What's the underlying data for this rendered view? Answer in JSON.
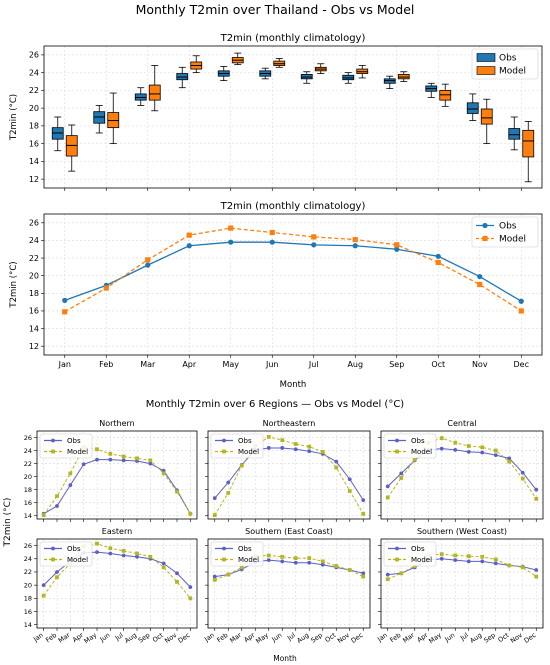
{
  "figure": {
    "suptitle": "Monthly T2min over Thailand - Obs vs Model",
    "regions_title": "Monthly T2min over 6 Regions — Obs vs Model (°C)",
    "regions_ylabel": "T2min (°C)",
    "regions_xlabel": "Month"
  },
  "colors": {
    "obs_box": "#1f77b4",
    "model_box": "#ff7f0e",
    "obs_line": "#1f77b4",
    "model_line": "#ff7f0e",
    "region_obs": "#5b5fc7",
    "region_model": "#b5b523",
    "grid": "#d9d9d9"
  },
  "chart_data": [
    {
      "type": "box",
      "title": "T2min (monthly climatology)",
      "xlabel": "",
      "ylabel": "T2min (°C)",
      "ylim": [
        11,
        27
      ],
      "yticks": [
        12,
        14,
        16,
        18,
        20,
        22,
        24,
        26
      ],
      "categories": [
        "Jan",
        "Feb",
        "Mar",
        "Apr",
        "May",
        "Jun",
        "Jul",
        "Aug",
        "Sep",
        "Oct",
        "Nov",
        "Dec"
      ],
      "legend": "top-right",
      "series": [
        {
          "name": "Obs",
          "boxes": [
            [
              15.2,
              16.5,
              17.2,
              17.8,
              19.0
            ],
            [
              17.2,
              18.3,
              19.0,
              19.6,
              20.3
            ],
            [
              20.3,
              20.9,
              21.2,
              21.6,
              22.3
            ],
            [
              22.3,
              23.2,
              23.5,
              23.9,
              24.6
            ],
            [
              23.1,
              23.6,
              23.9,
              24.2,
              24.7
            ],
            [
              23.3,
              23.6,
              23.9,
              24.2,
              24.5
            ],
            [
              22.8,
              23.3,
              23.5,
              23.8,
              24.1
            ],
            [
              22.8,
              23.2,
              23.4,
              23.7,
              24.0
            ],
            [
              22.2,
              22.8,
              23.1,
              23.3,
              23.6
            ],
            [
              21.2,
              21.9,
              22.2,
              22.5,
              22.8
            ],
            [
              18.6,
              19.4,
              19.9,
              20.6,
              21.6
            ],
            [
              15.3,
              16.5,
              17.0,
              17.7,
              19.0
            ]
          ]
        },
        {
          "name": "Model",
          "boxes": [
            [
              12.9,
              14.6,
              15.8,
              16.9,
              18.1
            ],
            [
              16.0,
              17.8,
              18.6,
              19.5,
              21.7
            ],
            [
              19.7,
              20.9,
              21.6,
              22.6,
              24.8
            ],
            [
              24.0,
              24.4,
              24.8,
              25.2,
              25.9
            ],
            [
              24.9,
              25.1,
              25.4,
              25.7,
              26.2
            ],
            [
              24.6,
              24.8,
              25.0,
              25.3,
              25.6
            ],
            [
              23.9,
              24.2,
              24.4,
              24.6,
              25.0
            ],
            [
              23.4,
              23.9,
              24.1,
              24.4,
              24.8
            ],
            [
              23.0,
              23.3,
              23.5,
              23.8,
              24.1
            ],
            [
              20.2,
              20.9,
              21.5,
              22.0,
              22.7
            ],
            [
              16.0,
              18.2,
              18.9,
              19.9,
              21.0
            ],
            [
              11.7,
              14.5,
              16.3,
              17.5,
              18.5
            ]
          ]
        }
      ]
    },
    {
      "type": "line",
      "title": "T2min (monthly climatology)",
      "xlabel": "Month",
      "ylabel": "T2min (°C)",
      "ylim": [
        11,
        27
      ],
      "yticks": [
        12,
        14,
        16,
        18,
        20,
        22,
        24,
        26
      ],
      "categories": [
        "Jan",
        "Feb",
        "Mar",
        "Apr",
        "May",
        "Jun",
        "Jul",
        "Aug",
        "Sep",
        "Oct",
        "Nov",
        "Dec"
      ],
      "legend": "top-right",
      "series": [
        {
          "name": "Obs",
          "values": [
            17.2,
            18.9,
            21.2,
            23.4,
            23.8,
            23.8,
            23.5,
            23.4,
            23.0,
            22.2,
            19.9,
            17.1
          ]
        },
        {
          "name": "Model",
          "values": [
            15.9,
            18.6,
            21.8,
            24.6,
            25.4,
            24.9,
            24.4,
            24.1,
            23.5,
            21.5,
            19.0,
            16.0
          ]
        }
      ]
    },
    {
      "type": "line",
      "title": "Northern",
      "categories": [
        "Jan",
        "Feb",
        "Mar",
        "Apr",
        "May",
        "Jun",
        "Jul",
        "Aug",
        "Sep",
        "Oct",
        "Nov",
        "Dec"
      ],
      "ylim": [
        13.5,
        27
      ],
      "yticks": [
        14,
        16,
        18,
        20,
        22,
        24,
        26
      ],
      "legend": "top-left",
      "series": [
        {
          "name": "Obs",
          "values": [
            14.3,
            15.5,
            18.7,
            21.9,
            22.6,
            22.6,
            22.5,
            22.4,
            22.0,
            20.9,
            17.9,
            14.3
          ]
        },
        {
          "name": "Model",
          "values": [
            14.1,
            17.0,
            20.5,
            24.5,
            24.2,
            23.5,
            23.1,
            22.8,
            22.5,
            20.5,
            17.7,
            14.3
          ]
        }
      ]
    },
    {
      "type": "line",
      "title": "Northeastern",
      "categories": [
        "Jan",
        "Feb",
        "Mar",
        "Apr",
        "May",
        "Jun",
        "Jul",
        "Aug",
        "Sep",
        "Oct",
        "Nov",
        "Dec"
      ],
      "ylim": [
        13.5,
        27
      ],
      "yticks": [
        14,
        16,
        18,
        20,
        22,
        24,
        26
      ],
      "legend": "top-left",
      "series": [
        {
          "name": "Obs",
          "values": [
            16.7,
            19.1,
            21.8,
            24.1,
            24.4,
            24.4,
            24.2,
            23.9,
            23.5,
            22.3,
            19.6,
            16.4
          ]
        },
        {
          "name": "Model",
          "values": [
            14.1,
            17.5,
            21.7,
            24.7,
            26.1,
            25.6,
            25.0,
            24.6,
            23.8,
            21.4,
            17.8,
            14.3
          ]
        }
      ]
    },
    {
      "type": "line",
      "title": "Central",
      "categories": [
        "Jan",
        "Feb",
        "Mar",
        "Apr",
        "May",
        "Jun",
        "Jul",
        "Aug",
        "Sep",
        "Oct",
        "Nov",
        "Dec"
      ],
      "ylim": [
        13.5,
        27
      ],
      "yticks": [
        14,
        16,
        18,
        20,
        22,
        24,
        26
      ],
      "legend": "top-left",
      "series": [
        {
          "name": "Obs",
          "values": [
            18.5,
            20.5,
            22.5,
            24.1,
            24.3,
            24.1,
            23.8,
            23.7,
            23.3,
            22.8,
            20.6,
            18.0
          ]
        },
        {
          "name": "Model",
          "values": [
            16.8,
            19.8,
            22.6,
            25.2,
            25.9,
            25.2,
            24.7,
            24.5,
            24.0,
            22.3,
            19.7,
            16.6
          ]
        }
      ]
    },
    {
      "type": "line",
      "title": "Eastern",
      "categories": [
        "Jan",
        "Feb",
        "Mar",
        "Apr",
        "May",
        "Jun",
        "Jul",
        "Aug",
        "Sep",
        "Oct",
        "Nov",
        "Dec"
      ],
      "ylim": [
        13.5,
        27
      ],
      "yticks": [
        14,
        16,
        18,
        20,
        22,
        24,
        26
      ],
      "legend": "top-left",
      "series": [
        {
          "name": "Obs",
          "values": [
            20.0,
            22.0,
            23.6,
            24.9,
            25.0,
            24.8,
            24.5,
            24.3,
            24.0,
            23.3,
            21.8,
            19.7
          ]
        },
        {
          "name": "Model",
          "values": [
            18.4,
            21.2,
            23.3,
            25.9,
            26.3,
            25.6,
            25.2,
            24.8,
            24.3,
            22.7,
            20.5,
            18.0
          ]
        }
      ]
    },
    {
      "type": "line",
      "title": "Southern (East Coast)",
      "categories": [
        "Jan",
        "Feb",
        "Mar",
        "Apr",
        "May",
        "Jun",
        "Jul",
        "Aug",
        "Sep",
        "Oct",
        "Nov",
        "Dec"
      ],
      "ylim": [
        13.5,
        27
      ],
      "yticks": [
        14,
        16,
        18,
        20,
        22,
        24,
        26
      ],
      "legend": "top-left",
      "series": [
        {
          "name": "Obs",
          "values": [
            21.3,
            21.6,
            22.4,
            23.5,
            23.8,
            23.6,
            23.4,
            23.4,
            23.1,
            22.7,
            22.3,
            21.8
          ]
        },
        {
          "name": "Model",
          "values": [
            20.8,
            21.6,
            22.7,
            24.4,
            24.5,
            24.3,
            24.1,
            24.1,
            23.6,
            22.9,
            22.3,
            21.3
          ]
        }
      ]
    },
    {
      "type": "line",
      "title": "Southern (West Coast)",
      "categories": [
        "Jan",
        "Feb",
        "Mar",
        "Apr",
        "May",
        "Jun",
        "Jul",
        "Aug",
        "Sep",
        "Oct",
        "Nov",
        "Dec"
      ],
      "ylim": [
        13.5,
        27
      ],
      "yticks": [
        14,
        16,
        18,
        20,
        22,
        24,
        26
      ],
      "legend": "top-left",
      "series": [
        {
          "name": "Obs",
          "values": [
            21.6,
            21.8,
            22.7,
            23.8,
            24.0,
            23.8,
            23.6,
            23.6,
            23.3,
            23.0,
            22.8,
            22.3
          ]
        },
        {
          "name": "Model",
          "values": [
            20.9,
            21.8,
            22.9,
            24.6,
            24.7,
            24.5,
            24.4,
            24.3,
            23.9,
            23.0,
            22.7,
            21.3
          ]
        }
      ]
    }
  ]
}
